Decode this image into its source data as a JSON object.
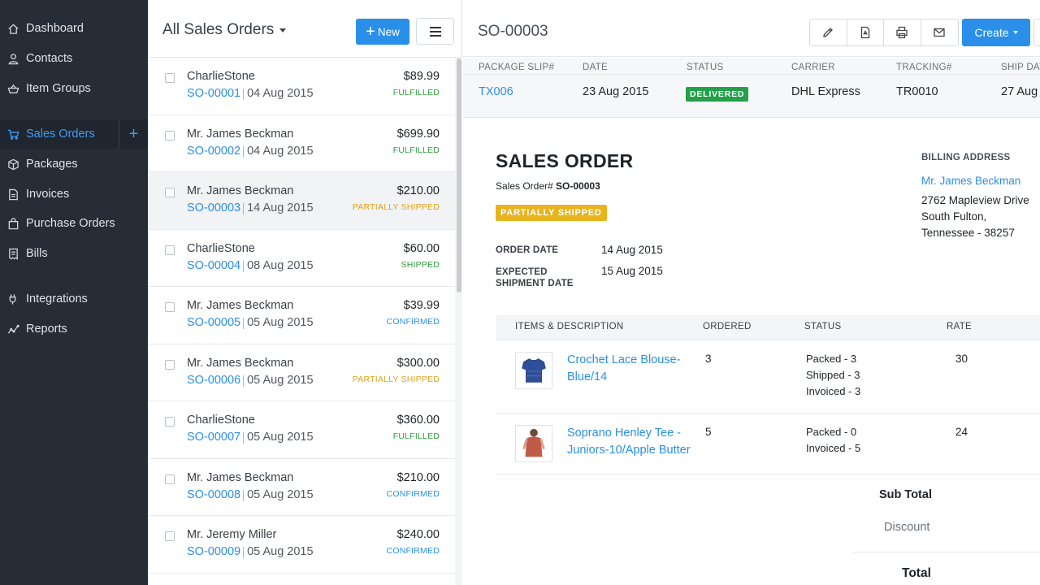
{
  "sidebar": {
    "items": [
      {
        "label": "Dashboard",
        "icon": "home-icon"
      },
      {
        "label": "Contacts",
        "icon": "user-icon"
      },
      {
        "label": "Item Groups",
        "icon": "basket-icon"
      },
      {
        "label": "Sales Orders",
        "icon": "cart-icon",
        "active": true
      },
      {
        "label": "Packages",
        "icon": "package-icon"
      },
      {
        "label": "Invoices",
        "icon": "invoice-icon"
      },
      {
        "label": "Purchase Orders",
        "icon": "bag-icon"
      },
      {
        "label": "Bills",
        "icon": "bill-icon"
      },
      {
        "label": "Integrations",
        "icon": "plug-icon"
      },
      {
        "label": "Reports",
        "icon": "chart-icon"
      }
    ],
    "add_label": "+"
  },
  "list": {
    "title": "All Sales Orders",
    "new_label": "New",
    "orders": [
      {
        "customer": "CharlieStone",
        "number": "SO-00001",
        "date": "04 Aug 2015",
        "amount": "$89.99",
        "status": "FULFILLED",
        "status_color": "#2e9e3a"
      },
      {
        "customer": "Mr. James Beckman",
        "number": "SO-00002",
        "date": "04 Aug 2015",
        "amount": "$699.90",
        "status": "FULFILLED",
        "status_color": "#2e9e3a"
      },
      {
        "customer": "Mr. James Beckman",
        "number": "SO-00003",
        "date": "14 Aug 2015",
        "amount": "$210.00",
        "status": "PARTIALLY SHIPPED",
        "status_color": "#e0a21a"
      },
      {
        "customer": "CharlieStone",
        "number": "SO-00004",
        "date": "08 Aug 2015",
        "amount": "$60.00",
        "status": "SHIPPED",
        "status_color": "#2e9e3a"
      },
      {
        "customer": "Mr. James Beckman",
        "number": "SO-00005",
        "date": "05 Aug 2015",
        "amount": "$39.99",
        "status": "CONFIRMED",
        "status_color": "#2a8fe8"
      },
      {
        "customer": "Mr. James Beckman",
        "number": "SO-00006",
        "date": "05 Aug 2015",
        "amount": "$300.00",
        "status": "PARTIALLY SHIPPED",
        "status_color": "#e0a21a"
      },
      {
        "customer": "CharlieStone",
        "number": "SO-00007",
        "date": "05 Aug 2015",
        "amount": "$360.00",
        "status": "FULFILLED",
        "status_color": "#2e9e3a"
      },
      {
        "customer": "Mr. James Beckman",
        "number": "SO-00008",
        "date": "05 Aug 2015",
        "amount": "$210.00",
        "status": "CONFIRMED",
        "status_color": "#2a8fe8"
      },
      {
        "customer": "Mr. Jeremy Miller",
        "number": "SO-00009",
        "date": "05 Aug 2015",
        "amount": "$240.00",
        "status": "CONFIRMED",
        "status_color": "#2a8fe8"
      }
    ]
  },
  "detail": {
    "title": "SO-00003",
    "create_label": "Create",
    "package": {
      "headers": [
        "PACKAGE SLIP#",
        "DATE",
        "STATUS",
        "CARRIER",
        "TRACKING#",
        "SHIP DATE"
      ],
      "slip": "TX006",
      "date": "23 Aug 2015",
      "status": "DELIVERED",
      "carrier": "DHL Express",
      "tracking": "TR0010",
      "ship_date": "27 Aug"
    },
    "doc_title": "SALES ORDER",
    "so_label": "Sales Order#",
    "so_number": "SO-00003",
    "status_badge": "PARTIALLY SHIPPED",
    "order_date_label": "ORDER DATE",
    "order_date": "14 Aug 2015",
    "expected_label_1": "EXPECTED",
    "expected_label_2": "SHIPMENT DATE",
    "expected_date": "15 Aug 2015",
    "billing": {
      "heading": "BILLING ADDRESS",
      "name": "Mr. James Beckman",
      "line1": "2762 Mapleview Drive",
      "line2": "South Fulton,",
      "line3": "Tennessee - 38257"
    },
    "items_headers": {
      "desc": "ITEMS & DESCRIPTION",
      "ordered": "ORDERED",
      "status": "STATUS",
      "rate": "RATE"
    },
    "items": [
      {
        "name_1": "Crochet Lace Blouse-",
        "name_2": "Blue/14",
        "ordered": "3",
        "status_1": "Packed - 3",
        "status_2": "Shipped - 3",
        "status_3": "Invoiced - 3",
        "rate": "30",
        "thumb": "blue-blouse-image"
      },
      {
        "name_1": "Soprano Henley Tee -",
        "name_2": "Juniors-10/Apple Butter",
        "ordered": "5",
        "status_1": "Packed - 0",
        "status_2": "Invoiced - 5",
        "rate": "24",
        "thumb": "henley-tee-image"
      }
    ],
    "sub_total_label": "Sub Total",
    "discount_label": "Discount",
    "total_label": "Total"
  },
  "colors": {
    "accent": "#2a8fe8",
    "sidebar": "#272d37",
    "delivered": "#23a049",
    "partial": "#e7b41f"
  }
}
